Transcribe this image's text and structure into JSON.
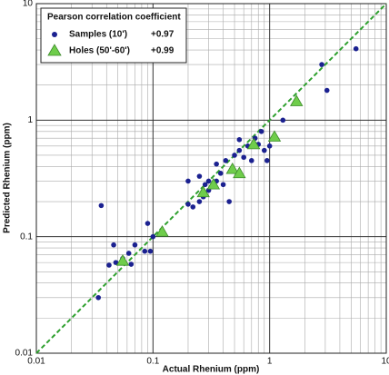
{
  "chart_data": {
    "type": "scatter",
    "xlabel": "Actual Rhenium (ppm)",
    "ylabel": "Predicted Rhenium (ppm)",
    "xlim": [
      0.01,
      10
    ],
    "ylim": [
      0.01,
      10
    ],
    "xticks": [
      0.01,
      0.1,
      1,
      10
    ],
    "yticks": [
      0.01,
      0.1,
      1,
      10
    ],
    "log_x": true,
    "log_y": true,
    "grid": true,
    "minor_grid": true,
    "legend_title": "Pearson correlation coefficient",
    "legend_position": "upper left",
    "identity_line_color": "#2ea02e",
    "series": [
      {
        "name": "Samples (10')",
        "coefficient": "+0.97",
        "color": "#1b2190",
        "marker": "circle",
        "x": [
          0.036,
          0.034,
          0.042,
          0.046,
          0.048,
          0.055,
          0.062,
          0.065,
          0.07,
          0.085,
          0.09,
          0.095,
          0.1,
          0.12,
          0.2,
          0.22,
          0.25,
          0.27,
          0.28,
          0.3,
          0.32,
          0.35,
          0.35,
          0.38,
          0.4,
          0.42,
          0.45,
          0.48,
          0.5,
          0.55,
          0.6,
          0.65,
          0.7,
          0.75,
          0.8,
          0.85,
          0.9,
          0.95,
          1.0,
          0.2,
          0.55,
          1.3,
          2.8,
          3.1,
          5.5,
          0.25,
          0.3
        ],
        "values": [
          0.185,
          0.03,
          0.057,
          0.085,
          0.06,
          0.065,
          0.072,
          0.058,
          0.085,
          0.075,
          0.13,
          0.075,
          0.1,
          0.11,
          0.19,
          0.18,
          0.2,
          0.22,
          0.28,
          0.25,
          0.27,
          0.3,
          0.42,
          0.35,
          0.28,
          0.45,
          0.2,
          0.38,
          0.5,
          0.55,
          0.48,
          0.6,
          0.45,
          0.7,
          0.62,
          0.8,
          0.55,
          0.45,
          0.6,
          0.3,
          0.68,
          1.0,
          3.0,
          1.8,
          4.1,
          0.33,
          0.3
        ]
      },
      {
        "name": "Holes (50'-60')",
        "coefficient": "+0.99",
        "color": "#6fcd4b",
        "marker": "triangle",
        "x": [
          0.055,
          0.12,
          0.27,
          0.33,
          0.48,
          0.55,
          0.73,
          1.1,
          1.7
        ],
        "values": [
          0.062,
          0.11,
          0.24,
          0.28,
          0.38,
          0.35,
          0.62,
          0.72,
          1.45
        ]
      }
    ]
  }
}
